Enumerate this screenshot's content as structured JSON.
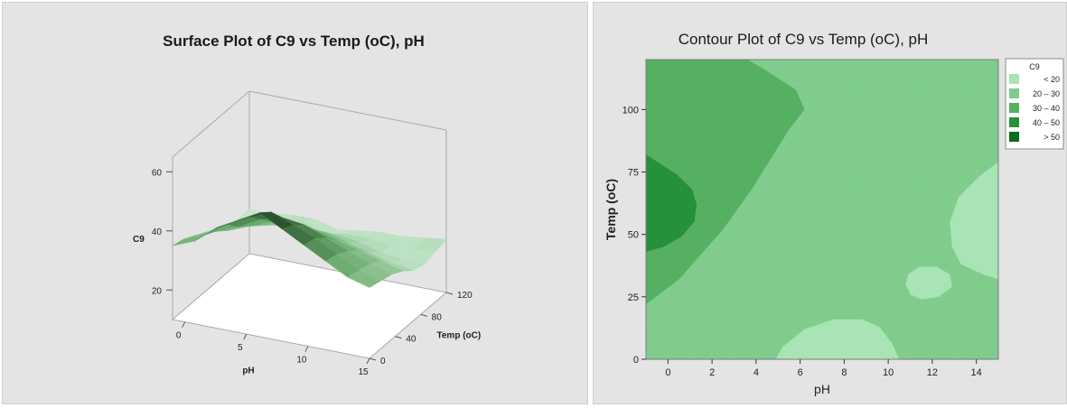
{
  "chart_data": [
    {
      "type": "surface",
      "title": "Surface Plot of C9 vs Temp (oC), pH",
      "xlabel": "pH",
      "ylabel": "Temp (oC)",
      "zlabel": "C9",
      "x_ticks": [
        "0",
        "5",
        "10",
        "15"
      ],
      "y_ticks": [
        "0",
        "40",
        "80",
        "120"
      ],
      "z_ticks": [
        "20",
        "40",
        "60"
      ],
      "xlim": [
        -1,
        15
      ],
      "ylim": [
        0,
        120
      ],
      "zlim": [
        10,
        65
      ],
      "grid": [
        [
          35,
          38,
          44,
          48,
          52,
          48,
          44,
          40,
          36,
          34
        ],
        [
          34,
          37,
          42,
          46,
          49,
          46,
          43,
          39,
          35,
          33
        ],
        [
          32,
          35,
          38,
          42,
          44,
          43,
          40,
          37,
          34,
          32
        ],
        [
          30,
          32,
          35,
          38,
          39,
          38,
          36,
          34,
          32,
          30
        ],
        [
          28,
          30,
          32,
          34,
          33,
          34,
          32,
          30,
          28,
          27
        ],
        [
          26,
          28,
          29,
          30,
          29,
          30,
          29,
          27,
          26,
          26
        ],
        [
          25,
          26,
          27,
          28,
          26,
          27,
          27,
          26,
          26,
          27
        ],
        [
          25,
          25,
          26,
          26,
          24,
          25,
          26,
          26,
          27,
          28
        ]
      ],
      "colors": {
        "low": "#cdebd3",
        "mid": "#6aab6e",
        "high": "#1a3a1e"
      }
    },
    {
      "type": "contour",
      "title": "Contour Plot of C9 vs Temp (oC), pH",
      "xlabel": "pH",
      "ylabel": "Temp (oC)",
      "xlim": [
        -1,
        15
      ],
      "ylim": [
        0,
        120
      ],
      "x_ticks": [
        "0",
        "2",
        "4",
        "6",
        "8",
        "10",
        "12",
        "14"
      ],
      "y_ticks": [
        "0",
        "25",
        "50",
        "75",
        "100"
      ],
      "legend_title": "C9",
      "legend": [
        {
          "label": "< 20",
          "color": "#a8e4b6"
        },
        {
          "label": "20 – 30",
          "color": "#80cc8c"
        },
        {
          "label": "30 – 40",
          "color": "#56b062"
        },
        {
          "label": "40 – 50",
          "color": "#25913a"
        },
        {
          "label": "> 50",
          "color": "#0a6b22"
        }
      ],
      "legend_placement": "right",
      "regions": [
        {
          "level": "30 – 40",
          "points": [
            [
              -1,
              22
            ],
            [
              0.5,
              32
            ],
            [
              2.5,
              52
            ],
            [
              3.8,
              68
            ],
            [
              5.5,
              92
            ],
            [
              6.2,
              100
            ],
            [
              5.8,
              108
            ],
            [
              4.2,
              117
            ],
            [
              3.6,
              120
            ],
            [
              -1,
              120
            ]
          ]
        },
        {
          "level": "40 – 50",
          "points": [
            [
              -1,
              43
            ],
            [
              -0.2,
              45
            ],
            [
              0.6,
              49
            ],
            [
              1.2,
              55
            ],
            [
              1.3,
              62
            ],
            [
              1.1,
              68
            ],
            [
              0.4,
              74
            ],
            [
              -0.3,
              78
            ],
            [
              -1,
              82
            ]
          ]
        },
        {
          "level": "< 20",
          "points": [
            [
              4.9,
              0
            ],
            [
              5.2,
              5
            ],
            [
              6.2,
              12
            ],
            [
              7.5,
              16
            ],
            [
              8.8,
              16
            ],
            [
              9.6,
              13
            ],
            [
              10.2,
              6
            ],
            [
              10.5,
              0
            ]
          ]
        },
        {
          "level": "< 20",
          "points": [
            [
              10.8,
              30
            ],
            [
              11.0,
              26
            ],
            [
              11.5,
              24
            ],
            [
              12.3,
              25
            ],
            [
              12.9,
              29
            ],
            [
              12.8,
              34
            ],
            [
              12.2,
              37
            ],
            [
              11.4,
              37
            ],
            [
              10.9,
              34
            ]
          ]
        },
        {
          "level": "< 20",
          "points": [
            [
              15,
              32
            ],
            [
              14.3,
              34
            ],
            [
              13.3,
              38
            ],
            [
              12.9,
              45
            ],
            [
              12.8,
              55
            ],
            [
              13.2,
              65
            ],
            [
              14.1,
              73
            ],
            [
              15,
              79
            ]
          ]
        }
      ]
    }
  ]
}
